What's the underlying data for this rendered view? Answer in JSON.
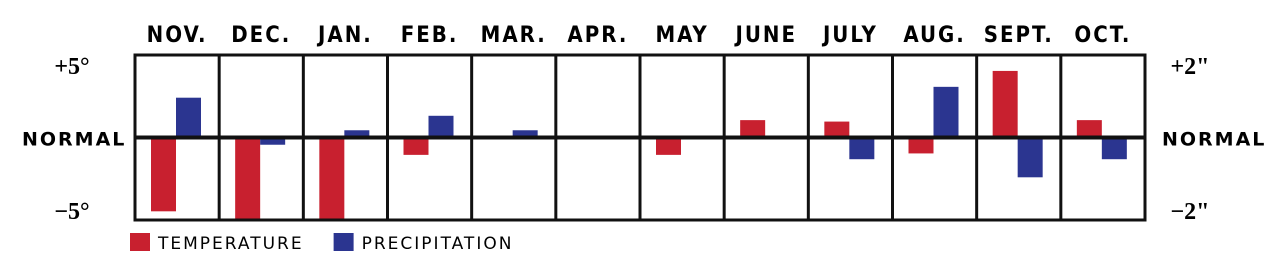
{
  "chart_data": {
    "type": "bar",
    "categories": [
      "NOV.",
      "DEC.",
      "JAN.",
      "FEB.",
      "MAR.",
      "APR.",
      "MAY",
      "JUNE",
      "JULY",
      "AUG.",
      "SEPT.",
      "OCT."
    ],
    "series": [
      {
        "name": "TEMPERATURE",
        "color": "#c8202f",
        "values": [
          -5.1,
          -5.7,
          -5.7,
          -1.2,
          0,
          0,
          -1.2,
          1.2,
          1.1,
          -1.1,
          4.6,
          1.2
        ]
      },
      {
        "name": "PRECIPITATION",
        "color": "#2b3590",
        "axis": "y2",
        "values": [
          1.1,
          -0.2,
          0.2,
          0.6,
          0.2,
          0,
          0,
          0,
          -0.6,
          1.4,
          -1.1,
          -0.6
        ]
      }
    ],
    "ylim": [
      -5.7,
      5.7
    ],
    "yticks": [
      {
        "value": -5,
        "label": "−5°"
      },
      {
        "value": 0,
        "label": "NORMAL"
      },
      {
        "value": 5,
        "label": "+5°"
      }
    ],
    "y2lim": [
      -2.28,
      2.28
    ],
    "y2ticks": [
      {
        "value": -2,
        "label": "−2\""
      },
      {
        "value": 0,
        "label": "NORMAL"
      },
      {
        "value": 2,
        "label": "+2\""
      }
    ],
    "legend": "bottom-left"
  }
}
